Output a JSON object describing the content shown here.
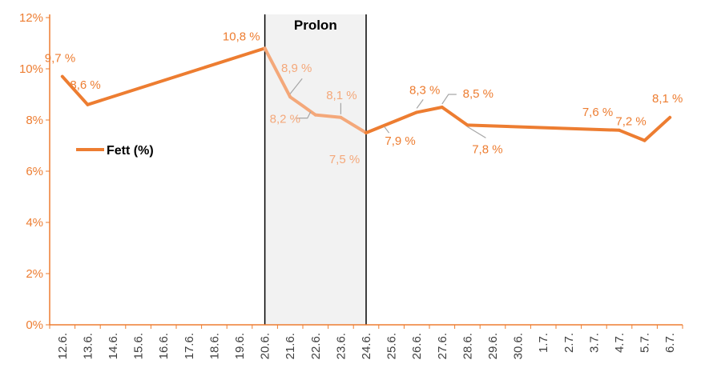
{
  "chart_data": {
    "type": "line",
    "title": "",
    "xlabel": "",
    "ylabel": "",
    "categories": [
      "12.6.",
      "13.6.",
      "14.6.",
      "15.6.",
      "16.6.",
      "17.6.",
      "18.6.",
      "19.6.",
      "20.6.",
      "21.6.",
      "22.6.",
      "23.6.",
      "24.6.",
      "25.6.",
      "26.6.",
      "27.6.",
      "28.6.",
      "29.6.",
      "30.6.",
      "1.7.",
      "2.7.",
      "3.7.",
      "4.7.",
      "5.7.",
      "6.7."
    ],
    "ylim": [
      0,
      12
    ],
    "y_ticks": [
      0,
      2,
      4,
      6,
      8,
      10,
      12
    ],
    "y_tick_labels": [
      "0%",
      "2%",
      "4%",
      "6%",
      "8%",
      "10%",
      "12%"
    ],
    "grid": false,
    "legend_position": "left",
    "series": [
      {
        "name": "Fett (%)",
        "color": "#ed7d31",
        "highlight_color": "#f4a87a",
        "points": [
          {
            "x": "12.6.",
            "y": 9.7,
            "label": "9,7 %"
          },
          {
            "x": "13.6.",
            "y": 8.6,
            "label": "8,6 %"
          },
          {
            "x": "20.6.",
            "y": 10.8,
            "label": "10,8 %"
          },
          {
            "x": "21.6.",
            "y": 8.9,
            "label": "8,9 %"
          },
          {
            "x": "22.6.",
            "y": 8.2,
            "label": "8,2 %"
          },
          {
            "x": "23.6.",
            "y": 8.1,
            "label": "8,1 %"
          },
          {
            "x": "24.6.",
            "y": 7.5,
            "label": "7,5 %"
          },
          {
            "x": "26.6.",
            "y": 8.3,
            "label": "8,3 %"
          },
          {
            "x": "27.6.",
            "y": 8.5,
            "label": "8,5 %"
          },
          {
            "x": "28.6.",
            "y": 7.8,
            "label": "7,8 %"
          },
          {
            "x": "4.7.",
            "y": 7.6,
            "label": "7,6 %"
          },
          {
            "x": "5.7.",
            "y": 7.2,
            "label": "7,2 %"
          },
          {
            "x": "6.7.",
            "y": 8.1,
            "label": "8,1 %"
          }
        ]
      }
    ],
    "extra_labels": [
      {
        "x": "25.6.",
        "y": 7.9,
        "label": "7,9 %"
      }
    ],
    "band": {
      "from": "20.6.",
      "to": "24.6.",
      "label": "Prolon",
      "fill": "#f2f2f2"
    }
  }
}
